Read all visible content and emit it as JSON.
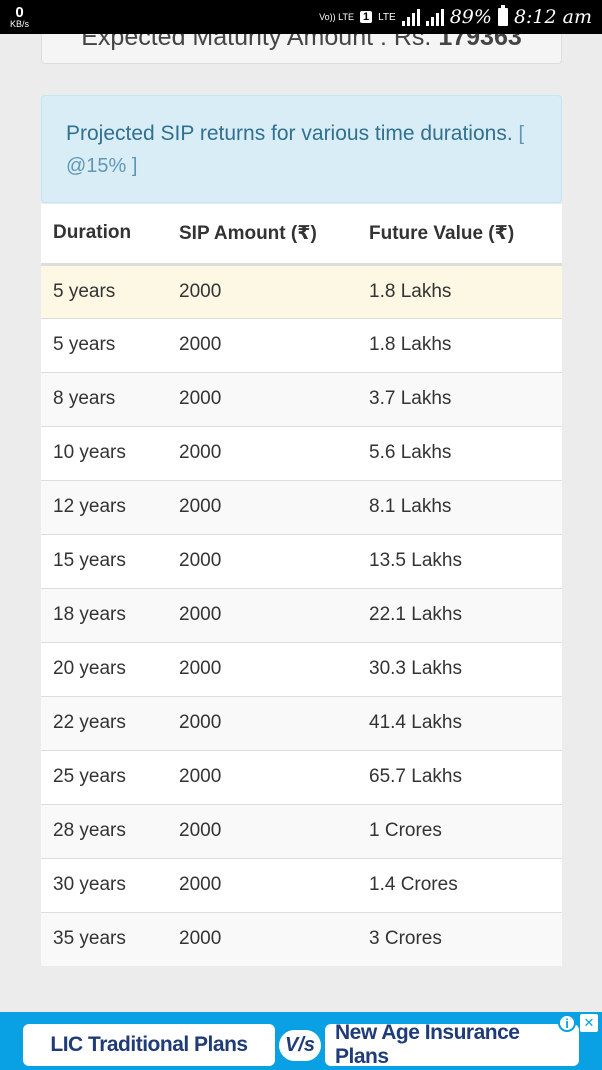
{
  "status_bar": {
    "net_speed_value": "0",
    "net_speed_unit": "KB/s",
    "volte_label": "Vo)) LTE",
    "sim_slot": "1",
    "lte_label": "LTE",
    "battery_percent": "89%",
    "time": "8:12 am"
  },
  "maturity": {
    "label": "Expected Maturity Amount : Rs. ",
    "amount": "179363"
  },
  "info": {
    "text": "Projected SIP returns for various time durations.",
    "rate": "[ @15% ]"
  },
  "table": {
    "headers": [
      "Duration",
      "SIP Amount (₹)",
      "Future Value (₹)"
    ],
    "rows": [
      [
        "5 years",
        "2000",
        "1.8 Lakhs"
      ],
      [
        "5 years",
        "2000",
        "1.8 Lakhs"
      ],
      [
        "8 years",
        "2000",
        "3.7 Lakhs"
      ],
      [
        "10 years",
        "2000",
        "5.6 Lakhs"
      ],
      [
        "12 years",
        "2000",
        "8.1 Lakhs"
      ],
      [
        "15 years",
        "2000",
        "13.5 Lakhs"
      ],
      [
        "18 years",
        "2000",
        "22.1 Lakhs"
      ],
      [
        "20 years",
        "2000",
        "30.3 Lakhs"
      ],
      [
        "22 years",
        "2000",
        "41.4 Lakhs"
      ],
      [
        "25 years",
        "2000",
        "65.7 Lakhs"
      ],
      [
        "28 years",
        "2000",
        "1 Crores"
      ],
      [
        "30 years",
        "2000",
        "1.4 Crores"
      ],
      [
        "35 years",
        "2000",
        "3 Crores"
      ]
    ]
  },
  "ad": {
    "left_label": "LIC Traditional Plans",
    "vs_label": "V/s",
    "right_label": "New Age Insurance Plans",
    "info_icon": "i",
    "close_icon": "✕"
  }
}
